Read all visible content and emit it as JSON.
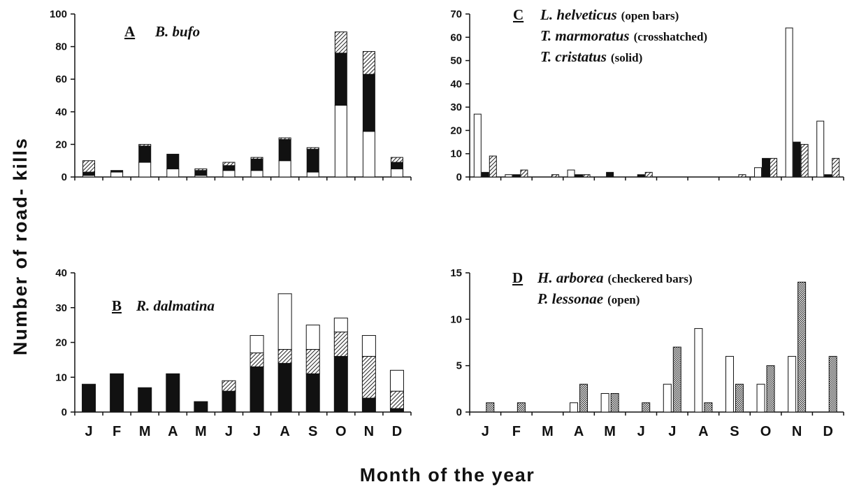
{
  "axis_titles": {
    "y": "Number of road- kills",
    "x": "Month of the year"
  },
  "colors": {
    "stroke": "#111111",
    "open": "#ffffff",
    "solid": "#111111"
  },
  "chart_data": [
    {
      "panel": "A",
      "type": "stacked-bar",
      "label": "A",
      "legend": [
        {
          "species": "B. bufo",
          "note": ""
        }
      ],
      "categories": [
        "J",
        "F",
        "M",
        "A",
        "M",
        "J",
        "J",
        "A",
        "S",
        "O",
        "N",
        "D"
      ],
      "ylim": [
        0,
        100
      ],
      "yticks": [
        0,
        20,
        40,
        60,
        80,
        100
      ],
      "series": [
        {
          "name": "",
          "pattern": "open",
          "values": [
            1,
            3,
            9,
            5,
            1,
            4,
            4,
            10,
            3,
            44,
            28,
            5
          ]
        },
        {
          "name": "",
          "pattern": "solid",
          "values": [
            2,
            1,
            10,
            9,
            3,
            3,
            7,
            13,
            14,
            32,
            35,
            4
          ]
        },
        {
          "name": "",
          "pattern": "hatch",
          "values": [
            7,
            0,
            1,
            0,
            1,
            2,
            1,
            1,
            1,
            13,
            14,
            3
          ]
        }
      ]
    },
    {
      "panel": "B",
      "type": "stacked-bar",
      "label": "B",
      "legend": [
        {
          "species": "R. dalmatina",
          "note": ""
        }
      ],
      "categories": [
        "J",
        "F",
        "M",
        "A",
        "M",
        "J",
        "J",
        "A",
        "S",
        "O",
        "N",
        "D"
      ],
      "ylim": [
        0,
        40
      ],
      "yticks": [
        0,
        10,
        20,
        30,
        40
      ],
      "series": [
        {
          "name": "",
          "pattern": "solid",
          "values": [
            8,
            11,
            7,
            11,
            3,
            6,
            13,
            14,
            11,
            16,
            4,
            1
          ]
        },
        {
          "name": "",
          "pattern": "hatch",
          "values": [
            0,
            0,
            0,
            0,
            0,
            3,
            4,
            4,
            7,
            7,
            12,
            5
          ]
        },
        {
          "name": "",
          "pattern": "open",
          "values": [
            0,
            0,
            0,
            0,
            0,
            0,
            5,
            16,
            7,
            4,
            6,
            6
          ]
        }
      ]
    },
    {
      "panel": "C",
      "type": "grouped-bar",
      "label": "C",
      "legend": [
        {
          "species": "L. helveticus",
          "note": "(open bars)"
        },
        {
          "species": "T. marmoratus",
          "note": "(crosshatched)"
        },
        {
          "species": "T. cristatus",
          "note": "(solid)"
        }
      ],
      "categories": [
        "J",
        "F",
        "M",
        "A",
        "M",
        "J",
        "J",
        "A",
        "S",
        "O",
        "N",
        "D"
      ],
      "ylim": [
        0,
        70
      ],
      "yticks": [
        0,
        10,
        20,
        30,
        40,
        50,
        60,
        70
      ],
      "series": [
        {
          "name": "L. helveticus",
          "pattern": "open",
          "values": [
            27,
            1,
            0,
            3,
            0,
            0,
            0,
            0,
            0,
            4,
            64,
            24
          ]
        },
        {
          "name": "T. cristatus",
          "pattern": "solid",
          "values": [
            2,
            1,
            0,
            1,
            2,
            1,
            0,
            0,
            0,
            8,
            15,
            1
          ]
        },
        {
          "name": "T. marmoratus",
          "pattern": "hatch",
          "values": [
            9,
            3,
            1,
            1,
            0,
            2,
            0,
            0,
            1,
            8,
            14,
            8
          ]
        }
      ]
    },
    {
      "panel": "D",
      "type": "grouped-bar",
      "label": "D",
      "legend": [
        {
          "species": "H. arborea",
          "note": "(checkered bars)"
        },
        {
          "species": "P. lessonae",
          "note": "(open)"
        }
      ],
      "categories": [
        "J",
        "F",
        "M",
        "A",
        "M",
        "J",
        "J",
        "A",
        "S",
        "O",
        "N",
        "D"
      ],
      "ylim": [
        0,
        15
      ],
      "yticks": [
        0,
        5,
        10,
        15
      ],
      "series": [
        {
          "name": "P. lessonae",
          "pattern": "open",
          "values": [
            0,
            0,
            0,
            1,
            2,
            0,
            3,
            9,
            6,
            3,
            6,
            0
          ]
        },
        {
          "name": "H. arborea",
          "pattern": "checker",
          "values": [
            1,
            1,
            0,
            3,
            2,
            1,
            7,
            1,
            3,
            5,
            14,
            6
          ]
        }
      ]
    }
  ]
}
